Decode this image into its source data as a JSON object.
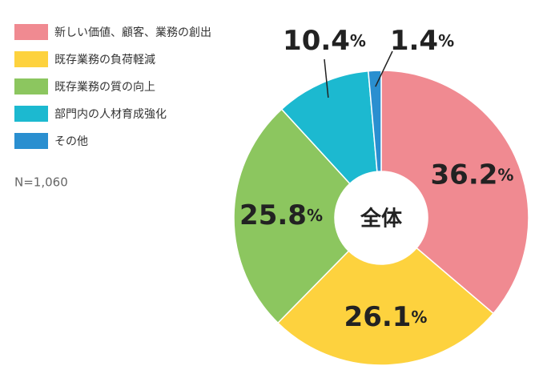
{
  "chart_data": {
    "type": "donut",
    "categories": [
      "新しい価値、顧客、業務の創出",
      "既存業務の負荷軽減",
      "既存業務の質の向上",
      "部門内の人材育成強化",
      "その他"
    ],
    "values": [
      36.2,
      26.1,
      25.8,
      10.4,
      1.4
    ],
    "value_labels": [
      "36.2%",
      "26.1%",
      "25.8%",
      "10.4%",
      "1.4%"
    ],
    "colors": [
      "#f08a91",
      "#fdd23e",
      "#8cc65f",
      "#1cb9d0",
      "#2a8fd0"
    ],
    "center_label": "全体",
    "note": "N=1,060",
    "legend": "top-left"
  }
}
